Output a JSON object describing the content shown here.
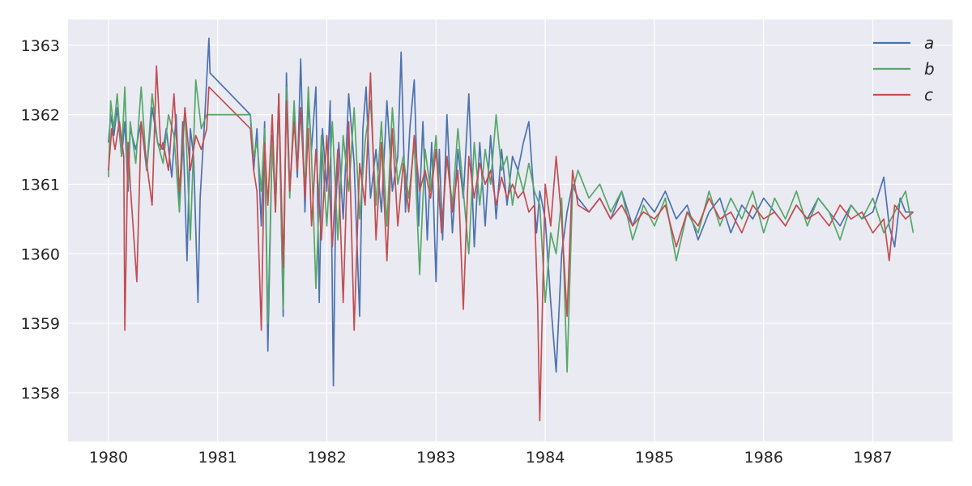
{
  "chart_data": {
    "type": "line",
    "title": "",
    "xlabel": "",
    "ylabel": "",
    "xlim": [
      1979.63,
      1987.73
    ],
    "ylim": [
      1357.3,
      1363.37
    ],
    "x_ticks": [
      1980,
      1981,
      1982,
      1983,
      1984,
      1985,
      1986,
      1987
    ],
    "x_tick_labels": [
      "1980",
      "1981",
      "1982",
      "1983",
      "1984",
      "1985",
      "1986",
      "1987"
    ],
    "y_ticks": [
      1358,
      1359,
      1360,
      1361,
      1362,
      1363
    ],
    "y_tick_labels": [
      "1358",
      "1359",
      "1360",
      "1361",
      "1362",
      "1363"
    ],
    "grid": true,
    "legend_position": "top-right",
    "background": "#eaeaf2",
    "series": [
      {
        "name": "a",
        "color": "#4c72b0",
        "x": [
          1980.0,
          1980.02,
          1980.05,
          1980.08,
          1980.12,
          1980.15,
          1980.18,
          1980.2,
          1980.25,
          1980.3,
          1980.35,
          1980.4,
          1980.45,
          1980.5,
          1980.53,
          1980.58,
          1980.62,
          1980.65,
          1980.68,
          1980.72,
          1980.75,
          1980.78,
          1980.82,
          1980.84,
          1980.88,
          1980.92,
          1980.93,
          1981.3,
          1981.33,
          1981.36,
          1981.4,
          1981.43,
          1981.46,
          1981.5,
          1981.53,
          1981.56,
          1981.6,
          1981.63,
          1981.66,
          1981.7,
          1981.73,
          1981.76,
          1981.8,
          1981.83,
          1981.86,
          1981.9,
          1981.93,
          1981.96,
          1982.0,
          1982.03,
          1982.06,
          1982.08,
          1982.11,
          1982.15,
          1982.2,
          1982.25,
          1982.3,
          1982.33,
          1982.36,
          1982.4,
          1982.45,
          1982.5,
          1982.55,
          1982.6,
          1982.65,
          1982.68,
          1982.72,
          1982.76,
          1982.8,
          1982.84,
          1982.88,
          1982.92,
          1982.96,
          1983.0,
          1983.03,
          1983.06,
          1983.1,
          1983.15,
          1983.2,
          1983.25,
          1983.3,
          1983.35,
          1983.4,
          1983.45,
          1983.5,
          1983.55,
          1983.6,
          1983.65,
          1983.7,
          1983.75,
          1983.8,
          1983.85,
          1983.88,
          1983.92,
          1983.95,
          1984.0,
          1984.05,
          1984.1,
          1984.15,
          1984.2,
          1984.25,
          1984.3,
          1984.4,
          1984.5,
          1984.6,
          1984.7,
          1984.8,
          1984.9,
          1985.0,
          1985.1,
          1985.2,
          1985.3,
          1985.4,
          1985.5,
          1985.6,
          1985.7,
          1985.8,
          1985.9,
          1986.0,
          1986.1,
          1986.2,
          1986.3,
          1986.4,
          1986.5,
          1986.6,
          1986.7,
          1986.8,
          1986.9,
          1987.0,
          1987.1,
          1987.15,
          1987.2,
          1987.25,
          1987.3,
          1987.37
        ],
        "values": [
          1361.6,
          1362.0,
          1361.7,
          1362.1,
          1361.4,
          1361.9,
          1360.9,
          1361.8,
          1361.5,
          1361.9,
          1361.2,
          1362.1,
          1361.6,
          1361.5,
          1361.8,
          1361.1,
          1362.0,
          1360.7,
          1361.9,
          1359.9,
          1361.8,
          1361.4,
          1359.3,
          1360.8,
          1361.9,
          1363.1,
          1362.6,
          1362.0,
          1361.2,
          1361.8,
          1360.4,
          1361.9,
          1358.6,
          1361.7,
          1360.7,
          1362.3,
          1359.1,
          1362.6,
          1360.9,
          1362.0,
          1361.1,
          1362.8,
          1360.6,
          1362.2,
          1361.5,
          1362.4,
          1359.3,
          1361.8,
          1360.9,
          1362.2,
          1358.1,
          1360.6,
          1361.6,
          1360.5,
          1362.3,
          1361.3,
          1359.1,
          1361.8,
          1362.4,
          1360.8,
          1361.5,
          1360.6,
          1362.2,
          1360.9,
          1361.4,
          1362.9,
          1360.6,
          1361.8,
          1362.5,
          1360.4,
          1361.9,
          1360.2,
          1361.6,
          1359.6,
          1361.5,
          1360.2,
          1362.0,
          1360.3,
          1361.5,
          1360.8,
          1362.3,
          1360.1,
          1361.6,
          1360.4,
          1361.7,
          1360.5,
          1361.5,
          1360.7,
          1361.4,
          1361.2,
          1361.6,
          1361.9,
          1361.2,
          1360.3,
          1360.9,
          1360.5,
          1359.3,
          1358.3,
          1360.0,
          1360.6,
          1361.0,
          1360.8,
          1360.6,
          1360.8,
          1360.5,
          1360.9,
          1360.4,
          1360.8,
          1360.6,
          1360.9,
          1360.5,
          1360.7,
          1360.2,
          1360.6,
          1360.8,
          1360.3,
          1360.7,
          1360.5,
          1360.8,
          1360.6,
          1360.4,
          1360.7,
          1360.5,
          1360.8,
          1360.6,
          1360.4,
          1360.7,
          1360.5,
          1360.6,
          1361.1,
          1360.4,
          1360.1,
          1360.8,
          1360.6,
          1360.6
        ]
      },
      {
        "name": "b",
        "color": "#55a868",
        "x": [
          1980.0,
          1980.02,
          1980.05,
          1980.08,
          1980.12,
          1980.15,
          1980.18,
          1980.2,
          1980.25,
          1980.3,
          1980.35,
          1980.4,
          1980.45,
          1980.5,
          1980.55,
          1980.6,
          1980.65,
          1980.7,
          1980.75,
          1980.8,
          1980.85,
          1980.9,
          1980.93,
          1981.3,
          1981.33,
          1981.36,
          1981.4,
          1981.43,
          1981.46,
          1981.5,
          1981.53,
          1981.56,
          1981.6,
          1981.63,
          1981.66,
          1981.7,
          1981.73,
          1981.76,
          1981.8,
          1981.83,
          1981.86,
          1981.9,
          1981.95,
          1982.0,
          1982.05,
          1982.1,
          1982.15,
          1982.2,
          1982.25,
          1982.3,
          1982.35,
          1982.4,
          1982.45,
          1982.5,
          1982.55,
          1982.6,
          1982.65,
          1982.7,
          1982.75,
          1982.8,
          1982.85,
          1982.9,
          1982.95,
          1983.0,
          1983.05,
          1983.1,
          1983.15,
          1983.2,
          1983.25,
          1983.3,
          1983.35,
          1983.4,
          1983.45,
          1983.5,
          1983.55,
          1983.6,
          1983.65,
          1983.7,
          1983.75,
          1983.8,
          1983.85,
          1983.9,
          1983.95,
          1984.0,
          1984.05,
          1984.1,
          1984.15,
          1984.2,
          1984.25,
          1984.3,
          1984.4,
          1984.5,
          1984.6,
          1984.7,
          1984.8,
          1984.9,
          1985.0,
          1985.1,
          1985.2,
          1985.3,
          1985.4,
          1985.5,
          1985.6,
          1985.7,
          1985.8,
          1985.9,
          1986.0,
          1986.1,
          1986.2,
          1986.3,
          1986.4,
          1986.5,
          1986.6,
          1986.7,
          1986.8,
          1986.9,
          1987.0,
          1987.1,
          1987.2,
          1987.3,
          1987.37
        ],
        "values": [
          1361.1,
          1362.2,
          1361.8,
          1362.3,
          1361.4,
          1362.4,
          1361.0,
          1361.9,
          1361.3,
          1362.4,
          1361.2,
          1362.3,
          1361.6,
          1361.3,
          1362.0,
          1361.7,
          1360.6,
          1362.1,
          1360.2,
          1362.5,
          1361.8,
          1362.0,
          1362.0,
          1362.0,
          1361.4,
          1361.6,
          1360.9,
          1361.8,
          1359.0,
          1361.6,
          1360.6,
          1362.3,
          1359.2,
          1362.4,
          1360.8,
          1362.2,
          1361.2,
          1362.1,
          1360.9,
          1362.4,
          1361.4,
          1359.5,
          1361.7,
          1360.4,
          1361.9,
          1360.2,
          1361.7,
          1360.9,
          1362.1,
          1360.5,
          1361.6,
          1362.2,
          1360.7,
          1361.9,
          1360.4,
          1362.1,
          1361.0,
          1361.4,
          1360.8,
          1361.6,
          1359.7,
          1361.5,
          1360.9,
          1361.7,
          1360.3,
          1361.4,
          1360.7,
          1361.8,
          1360.9,
          1360.0,
          1361.6,
          1360.7,
          1361.5,
          1361.0,
          1362.0,
          1361.2,
          1361.4,
          1360.7,
          1361.2,
          1360.9,
          1361.3,
          1360.9,
          1360.7,
          1359.3,
          1360.3,
          1360.0,
          1360.8,
          1358.3,
          1360.9,
          1361.2,
          1360.8,
          1361.0,
          1360.6,
          1360.9,
          1360.2,
          1360.7,
          1360.4,
          1360.8,
          1359.9,
          1360.6,
          1360.3,
          1360.9,
          1360.4,
          1360.8,
          1360.5,
          1360.9,
          1360.3,
          1360.8,
          1360.5,
          1360.9,
          1360.4,
          1360.8,
          1360.6,
          1360.2,
          1360.7,
          1360.5,
          1360.8,
          1360.3,
          1360.6,
          1360.9,
          1360.3
        ]
      },
      {
        "name": "c",
        "color": "#c44e52",
        "x": [
          1980.0,
          1980.03,
          1980.06,
          1980.1,
          1980.14,
          1980.15,
          1980.18,
          1980.2,
          1980.26,
          1980.3,
          1980.35,
          1980.4,
          1980.44,
          1980.48,
          1980.5,
          1980.55,
          1980.6,
          1980.65,
          1980.7,
          1980.75,
          1980.8,
          1980.85,
          1980.9,
          1980.92,
          1981.3,
          1981.33,
          1981.36,
          1981.4,
          1981.43,
          1981.46,
          1981.5,
          1981.53,
          1981.56,
          1981.6,
          1981.63,
          1981.66,
          1981.7,
          1981.73,
          1981.76,
          1981.8,
          1981.83,
          1981.86,
          1981.9,
          1981.95,
          1982.0,
          1982.05,
          1982.1,
          1982.15,
          1982.2,
          1982.25,
          1982.3,
          1982.35,
          1982.4,
          1982.45,
          1982.5,
          1982.55,
          1982.6,
          1982.65,
          1982.7,
          1982.75,
          1982.8,
          1982.85,
          1982.9,
          1982.95,
          1983.0,
          1983.05,
          1983.1,
          1983.15,
          1983.2,
          1983.25,
          1983.3,
          1983.35,
          1983.4,
          1983.45,
          1983.5,
          1983.55,
          1983.6,
          1983.65,
          1983.7,
          1983.75,
          1983.8,
          1983.85,
          1983.9,
          1983.93,
          1983.95,
          1984.0,
          1984.05,
          1984.1,
          1984.15,
          1984.2,
          1984.25,
          1984.3,
          1984.4,
          1984.5,
          1984.6,
          1984.7,
          1984.8,
          1984.9,
          1985.0,
          1985.1,
          1985.2,
          1985.3,
          1985.4,
          1985.5,
          1985.6,
          1985.7,
          1985.8,
          1985.9,
          1986.0,
          1986.1,
          1986.2,
          1986.3,
          1986.4,
          1986.5,
          1986.6,
          1986.7,
          1986.8,
          1986.9,
          1987.0,
          1987.1,
          1987.15,
          1987.2,
          1987.3,
          1987.37
        ],
        "values": [
          1361.2,
          1361.8,
          1361.5,
          1361.9,
          1361.4,
          1358.9,
          1361.6,
          1361.0,
          1359.6,
          1361.9,
          1361.3,
          1360.7,
          1362.7,
          1361.5,
          1361.6,
          1361.2,
          1362.3,
          1360.9,
          1362.1,
          1361.2,
          1361.7,
          1361.5,
          1361.8,
          1362.4,
          1361.8,
          1361.2,
          1360.9,
          1358.9,
          1361.6,
          1360.7,
          1362.0,
          1360.6,
          1362.3,
          1359.8,
          1362.2,
          1360.9,
          1361.9,
          1361.2,
          1362.1,
          1360.8,
          1361.8,
          1360.4,
          1361.5,
          1360.2,
          1361.7,
          1360.1,
          1361.5,
          1359.3,
          1361.9,
          1358.9,
          1361.3,
          1360.7,
          1362.6,
          1360.2,
          1361.6,
          1359.9,
          1361.8,
          1360.4,
          1361.3,
          1360.6,
          1361.7,
          1360.9,
          1361.2,
          1360.8,
          1361.5,
          1360.3,
          1361.4,
          1360.6,
          1361.2,
          1359.2,
          1361.4,
          1360.8,
          1361.3,
          1361.0,
          1361.2,
          1360.7,
          1361.1,
          1360.8,
          1361.0,
          1360.8,
          1360.9,
          1360.6,
          1360.7,
          1359.3,
          1357.6,
          1361.0,
          1360.4,
          1361.4,
          1360.5,
          1359.1,
          1361.2,
          1360.7,
          1360.6,
          1360.8,
          1360.5,
          1360.7,
          1360.4,
          1360.6,
          1360.5,
          1360.7,
          1360.1,
          1360.6,
          1360.4,
          1360.8,
          1360.5,
          1360.6,
          1360.3,
          1360.7,
          1360.5,
          1360.6,
          1360.4,
          1360.7,
          1360.5,
          1360.6,
          1360.4,
          1360.7,
          1360.5,
          1360.6,
          1360.3,
          1360.5,
          1359.9,
          1360.7,
          1360.5,
          1360.6
        ]
      }
    ]
  }
}
